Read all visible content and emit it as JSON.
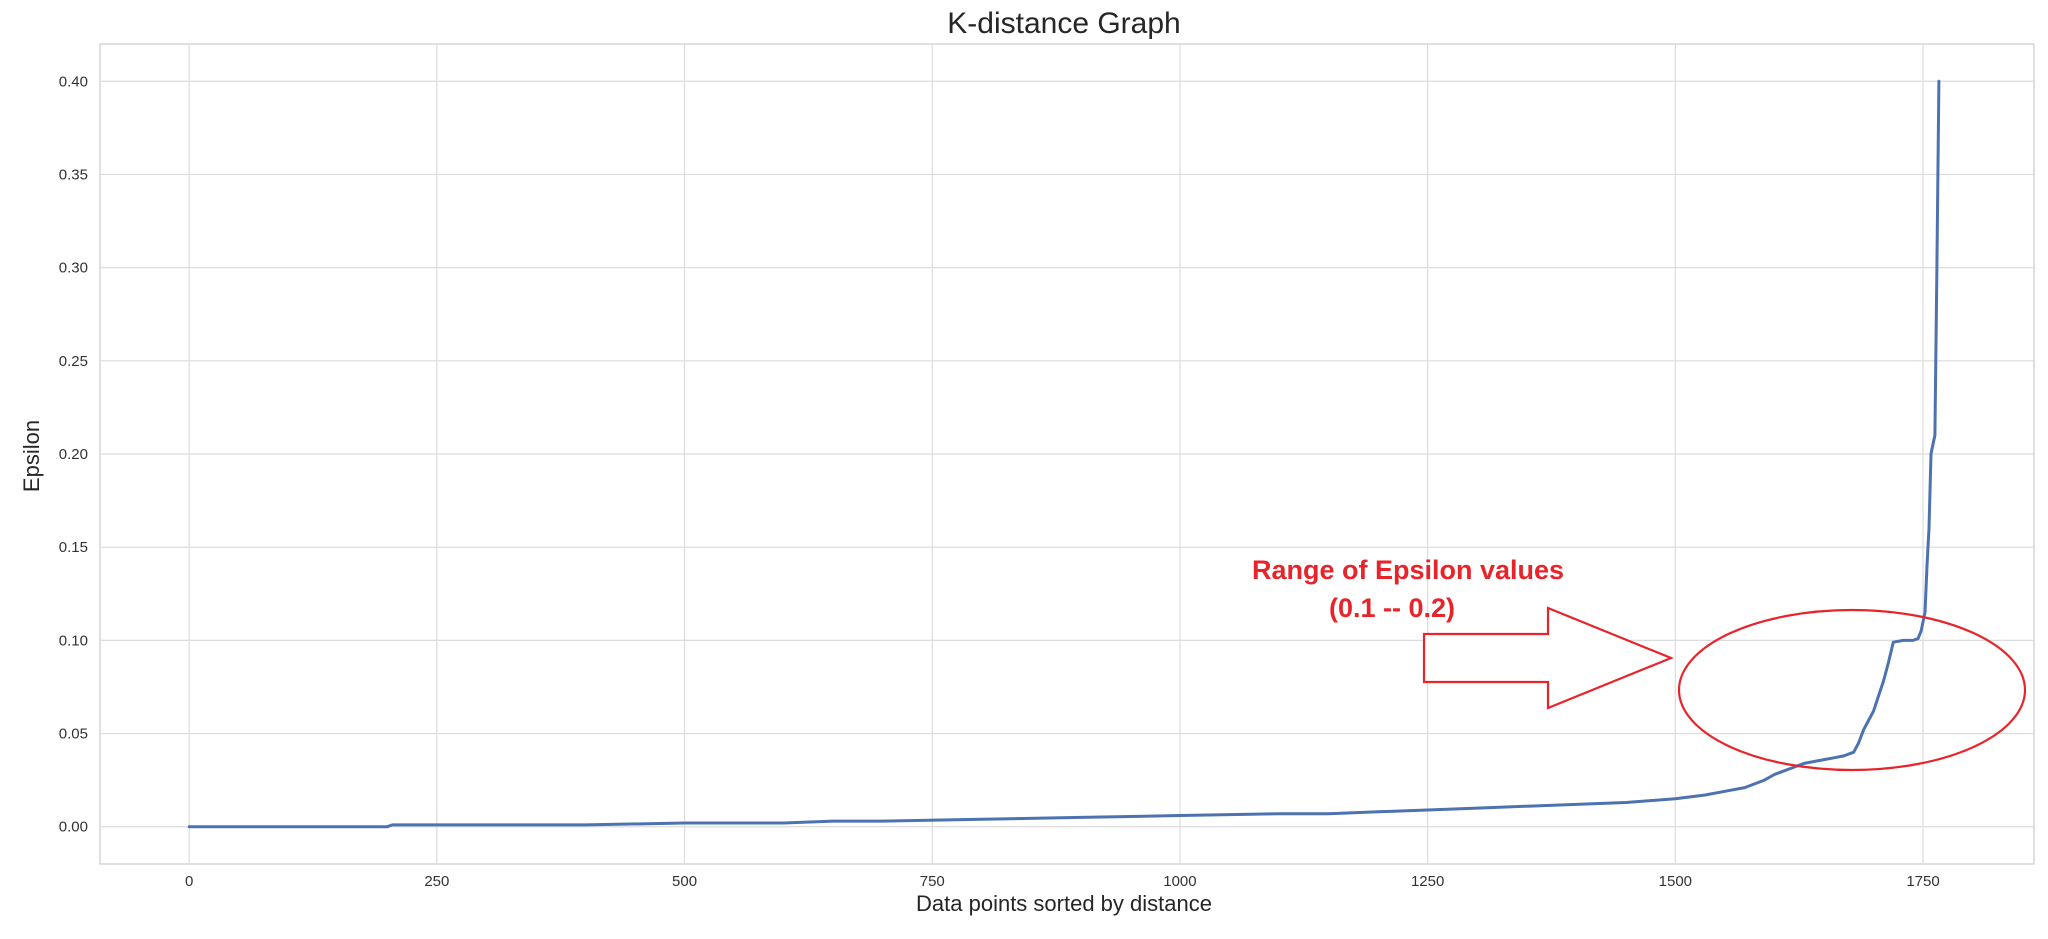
{
  "chart_data": {
    "type": "line",
    "title": "K-distance Graph",
    "xlabel": "Data points sorted by distance",
    "ylabel": "Epsilon",
    "xlim": [
      -90,
      1862
    ],
    "ylim": [
      -0.02,
      0.42
    ],
    "xticks": [
      0,
      250,
      500,
      750,
      1000,
      1250,
      1500,
      1750
    ],
    "yticks": [
      0.0,
      0.05,
      0.1,
      0.15,
      0.2,
      0.25,
      0.3,
      0.35,
      0.4
    ],
    "xtick_labels": [
      "0",
      "250",
      "500",
      "750",
      "1000",
      "1250",
      "1500",
      "1750"
    ],
    "ytick_labels": [
      "0.00",
      "0.05",
      "0.10",
      "0.15",
      "0.20",
      "0.25",
      "0.30",
      "0.35",
      "0.40"
    ],
    "grid": true,
    "series": [
      {
        "color": "#4c72b0",
        "x": [
          0,
          100,
          200,
          205,
          300,
          400,
          500,
          600,
          650,
          700,
          800,
          900,
          1000,
          1100,
          1150,
          1200,
          1250,
          1300,
          1350,
          1400,
          1450,
          1500,
          1530,
          1550,
          1570,
          1590,
          1600,
          1620,
          1630,
          1650,
          1660,
          1670,
          1680,
          1685,
          1690,
          1695,
          1700,
          1705,
          1710,
          1715,
          1720,
          1730,
          1740,
          1745,
          1748,
          1752,
          1754,
          1756,
          1758,
          1760,
          1762,
          1764,
          1766
        ],
        "y": [
          0.0,
          0.0,
          0.0,
          0.001,
          0.001,
          0.001,
          0.002,
          0.002,
          0.003,
          0.003,
          0.004,
          0.005,
          0.006,
          0.007,
          0.007,
          0.008,
          0.009,
          0.01,
          0.011,
          0.012,
          0.013,
          0.015,
          0.017,
          0.019,
          0.021,
          0.025,
          0.028,
          0.032,
          0.034,
          0.036,
          0.037,
          0.038,
          0.04,
          0.045,
          0.052,
          0.057,
          0.062,
          0.07,
          0.078,
          0.088,
          0.099,
          0.1,
          0.1,
          0.101,
          0.105,
          0.115,
          0.14,
          0.16,
          0.2,
          0.205,
          0.21,
          0.3,
          0.4
        ]
      }
    ],
    "annotations": [
      {
        "lines": [
          "Range of Epsilon values",
          "(0.1 -- 0.2)"
        ],
        "color": "#e8242b"
      }
    ]
  }
}
